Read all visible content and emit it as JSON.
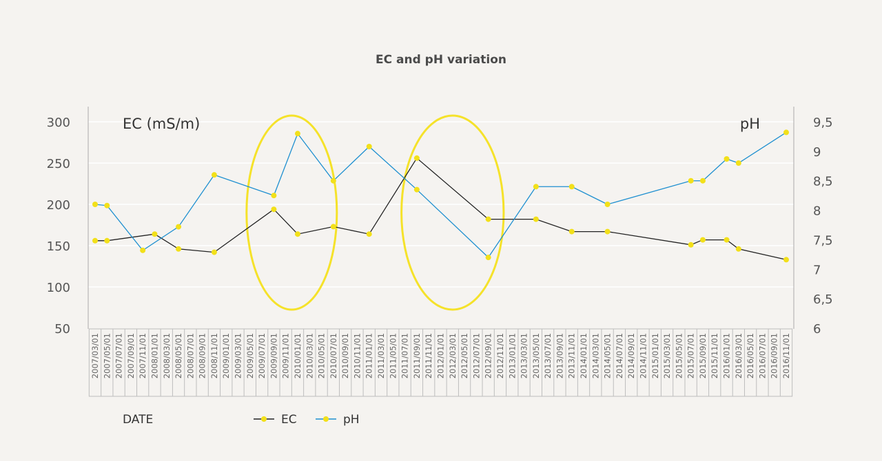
{
  "chart_data": {
    "type": "line",
    "title": "EC and pH variation",
    "xlabel": "DATE",
    "ylabel_left": "EC (mS/m)",
    "ylabel_right": "pH",
    "ylim_left": [
      50,
      300
    ],
    "ylim_right": [
      6,
      9.5
    ],
    "yticks_left": [
      "50",
      "100",
      "150",
      "200",
      "250",
      "300"
    ],
    "yticks_right": [
      "6",
      "6,5",
      "7",
      "7,5",
      "8",
      "8,5",
      "9",
      "9,5"
    ],
    "categories": [
      "2007/03/01",
      "2007/05/01",
      "2007/07/01",
      "2007/09/01",
      "2007/11/01",
      "2008/01/01",
      "2008/03/01",
      "2008/05/01",
      "2008/07/01",
      "2008/09/01",
      "2008/11/01",
      "2009/01/01",
      "2009/03/01",
      "2009/05/01",
      "2009/07/01",
      "2009/09/01",
      "2009/11/01",
      "2010/01/01",
      "2010/03/01",
      "2010/05/01",
      "2010/07/01",
      "2010/09/01",
      "2010/11/01",
      "2011/01/01",
      "2011/03/01",
      "2011/05/01",
      "2011/07/01",
      "2011/09/01",
      "2011/11/01",
      "2012/01/01",
      "2012/03/01",
      "2012/05/01",
      "2012/07/01",
      "2012/09/01",
      "2012/11/01",
      "2013/01/01",
      "2013/03/01",
      "2013/05/01",
      "2013/07/01",
      "2013/09/01",
      "2013/11/01",
      "2014/01/01",
      "2014/03/01",
      "2014/05/01",
      "2014/07/01",
      "2014/09/01",
      "2014/11/01",
      "2015/01/01",
      "2015/03/01",
      "2015/05/01",
      "2015/07/01",
      "2015/09/01",
      "2015/11/01",
      "2016/01/01",
      "2016/03/01",
      "2016/05/01",
      "2016/07/01",
      "2016/09/01",
      "2016/11/01"
    ],
    "series": [
      {
        "name": "EC",
        "axis": "left",
        "color": "#222222",
        "marker_color": "#f2e01a",
        "points": [
          [
            "2007/03/01",
            156
          ],
          [
            "2007/05/01",
            156
          ],
          [
            "2008/01/01",
            164
          ],
          [
            "2008/05/01",
            146
          ],
          [
            "2008/11/01",
            142
          ],
          [
            "2009/09/01",
            194
          ],
          [
            "2010/01/01",
            164
          ],
          [
            "2010/07/01",
            173
          ],
          [
            "2011/01/01",
            164
          ],
          [
            "2011/09/01",
            256
          ],
          [
            "2012/09/01",
            182
          ],
          [
            "2013/05/01",
            182
          ],
          [
            "2013/11/01",
            167
          ],
          [
            "2014/05/01",
            167
          ],
          [
            "2015/07/01",
            151
          ],
          [
            "2015/09/01",
            157
          ],
          [
            "2016/01/01",
            157
          ],
          [
            "2016/03/01",
            146
          ],
          [
            "2016/11/01",
            133
          ]
        ]
      },
      {
        "name": "pH",
        "axis": "right",
        "color": "#1d8fd0",
        "marker_color": "#f2e01a",
        "points": [
          [
            "2007/03/01",
            8.1
          ],
          [
            "2007/05/01",
            8.08
          ],
          [
            "2007/11/01",
            7.32
          ],
          [
            "2008/05/01",
            7.72
          ],
          [
            "2008/11/01",
            8.6
          ],
          [
            "2009/09/01",
            8.25
          ],
          [
            "2010/01/01",
            9.3
          ],
          [
            "2010/07/01",
            8.5
          ],
          [
            "2011/01/01",
            9.08
          ],
          [
            "2011/09/01",
            8.35
          ],
          [
            "2012/09/01",
            7.2
          ],
          [
            "2013/05/01",
            8.4
          ],
          [
            "2013/11/01",
            8.4
          ],
          [
            "2014/05/01",
            8.1
          ],
          [
            "2015/07/01",
            8.5
          ],
          [
            "2015/09/01",
            8.5
          ],
          [
            "2016/01/01",
            8.87
          ],
          [
            "2016/03/01",
            8.8
          ],
          [
            "2016/11/01",
            9.32
          ]
        ]
      }
    ],
    "highlights": [
      {
        "from": "2009/05/01",
        "to": "2010/07/01",
        "color": "#f5e22a"
      },
      {
        "from": "2011/07/01",
        "to": "2012/11/01",
        "color": "#f5e22a"
      }
    ],
    "grid": "horizontal",
    "legend": "bottom"
  }
}
